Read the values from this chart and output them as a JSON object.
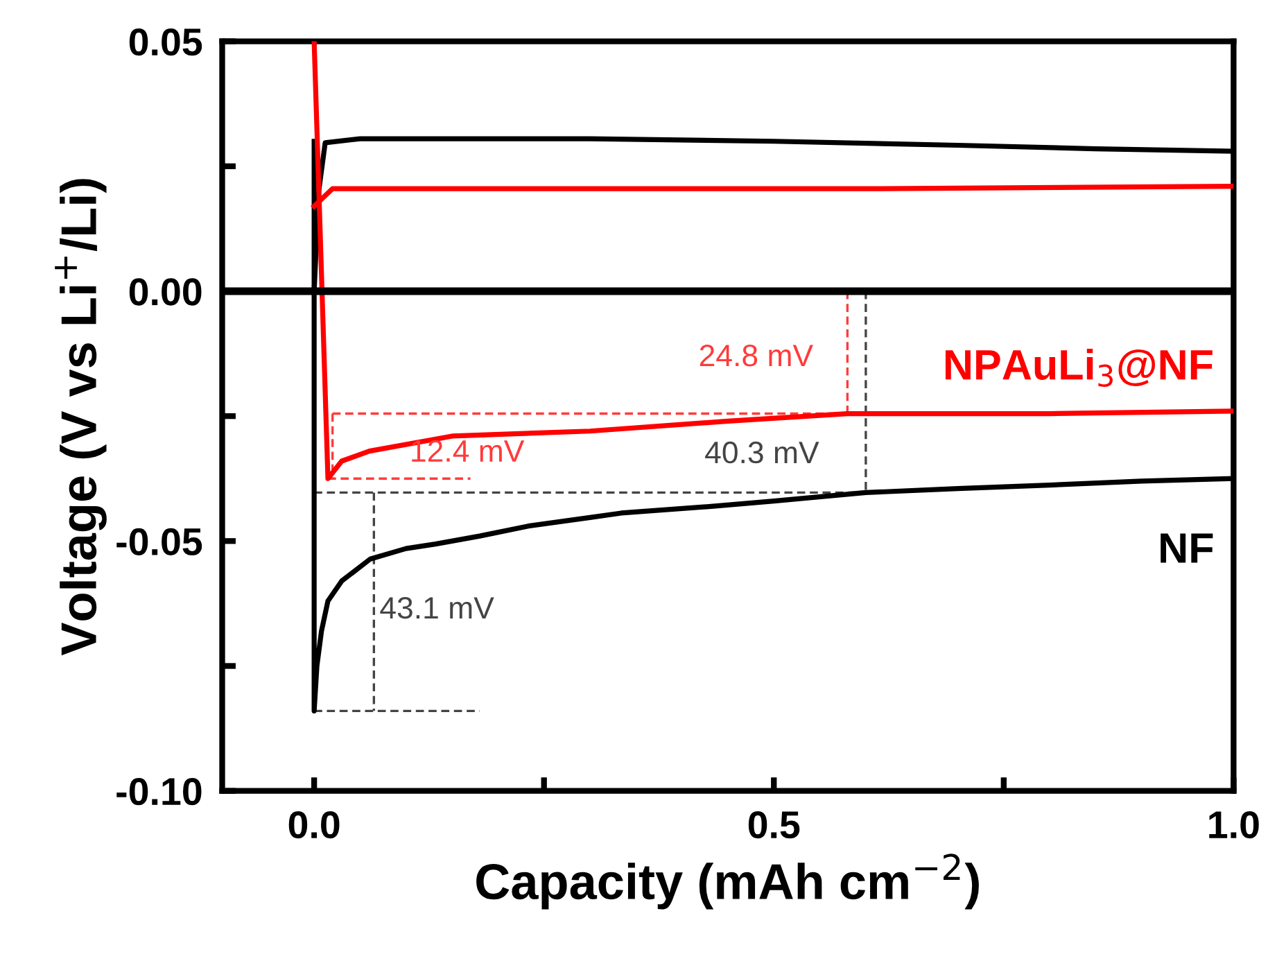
{
  "chart_data": {
    "type": "line",
    "xlabel": "Capacity (mAh cm$^{−2}$)",
    "ylabel": "Voltage (V vs Li$^{+}$/Li)",
    "xlim": [
      -0.1,
      1.0
    ],
    "ylim": [
      -0.1,
      0.05
    ],
    "xticks": [
      {
        "value": 0,
        "label": "0.0"
      },
      {
        "value": 0.25,
        "label": null
      },
      0.5,
      {
        "value": 0.75,
        "label": null
      },
      {
        "value": 1.0,
        "label": "1.0"
      }
    ],
    "yticks": [
      {
        "value": -0.1,
        "label": "-0.10"
      },
      {
        "value": -0.075,
        "label": null
      },
      {
        "value": -0.05,
        "label": "-0.05"
      },
      {
        "value": -0.025,
        "label": null
      },
      {
        "value": 0.0,
        "label": "0.00"
      },
      {
        "value": 0.025,
        "label": null
      },
      0.05
    ],
    "grid": false,
    "legend": false,
    "marker": "none",
    "line_style": "solid",
    "series": [
      {
        "name": "NF",
        "color": "#000000",
        "x": [
          0,
          0,
          0.003,
          0.008,
          0.015,
          0.03,
          0.061,
          0.1,
          0.132,
          0.18,
          0.233,
          0.3,
          0.334,
          0.436,
          0.5,
          0.6,
          0.7,
          0.8,
          0.9,
          1.0
        ],
        "values": [
          0.03,
          -0.084,
          -0.075,
          -0.068,
          -0.062,
          -0.058,
          -0.0536,
          -0.0515,
          -0.0506,
          -0.049,
          -0.047,
          -0.0453,
          -0.0444,
          -0.043,
          -0.042,
          -0.0403,
          -0.0395,
          -0.0388,
          -0.038,
          -0.0375
        ]
      },
      {
        "color": "#000000",
        "x": [
          0,
          0.005,
          0.012,
          0.05,
          0.3,
          0.5,
          0.7,
          0.85,
          1.0
        ],
        "values": [
          0.0,
          0.02,
          0.0297,
          0.0305,
          0.0305,
          0.03,
          0.0292,
          0.0285,
          0.028
        ]
      },
      {
        "name": "NPAuLi$_{3}$@NF",
        "color": "#ff0000",
        "x": [
          0,
          0.015,
          0.03,
          0.06,
          0.15,
          0.3,
          0.45,
          0.58,
          0.8,
          1.0
        ],
        "values": [
          0.05,
          -0.0375,
          -0.034,
          -0.032,
          -0.029,
          -0.028,
          -0.026,
          -0.0245,
          -0.0245,
          -0.024
        ]
      },
      {
        "color": "#ff0000",
        "x": [
          0,
          0.02,
          0.3,
          0.6,
          1.0
        ],
        "values": [
          0.017,
          0.0205,
          0.0205,
          0.0205,
          0.021
        ]
      },
      {
        "color": "#ff3b3b",
        "line_style": "dashed",
        "x": [
          0.02,
          0.58
        ],
        "values": [
          -0.0245,
          -0.0245
        ]
      },
      {
        "color": "#ff3b3b",
        "line_style": "dashed",
        "x": [
          0.58,
          0.58
        ],
        "values": [
          0.0,
          -0.0245
        ]
      },
      {
        "color": "#ff3b3b",
        "line_style": "dashed",
        "x": [
          0.015,
          0.17
        ],
        "values": [
          -0.0375,
          -0.0375
        ]
      },
      {
        "color": "#ff3b3b",
        "line_style": "dashed",
        "x": [
          0.02,
          0.02
        ],
        "values": [
          -0.0245,
          -0.0375
        ]
      },
      {
        "color": "#444444",
        "line_style": "dashed",
        "x": [
          0.0,
          0.6
        ],
        "values": [
          -0.0403,
          -0.0403
        ]
      },
      {
        "color": "#444444",
        "line_style": "dashed",
        "x": [
          0.6,
          0.6
        ],
        "values": [
          0.0,
          -0.0403
        ]
      },
      {
        "color": "#444444",
        "line_style": "dashed",
        "x": [
          0.0,
          0.18
        ],
        "values": [
          -0.084,
          -0.084
        ]
      },
      {
        "color": "#444444",
        "line_style": "dashed",
        "x": [
          0.065,
          0.065
        ],
        "values": [
          -0.0403,
          -0.084
        ]
      }
    ],
    "ref_lines": [
      {
        "axis": "y",
        "value": 0.0,
        "color": "#000000"
      }
    ],
    "annotations": [
      {
        "text": "24.8 mV",
        "x": 0.58,
        "y": -0.0245
      },
      {
        "text": "12.4 mV",
        "x": 0.02,
        "y": -0.0375
      },
      {
        "text": "40.3 mV",
        "x": 0.6,
        "y": -0.0403
      },
      {
        "text": "43.1 mV",
        "x": 0.065,
        "y": -0.0639
      }
    ]
  }
}
